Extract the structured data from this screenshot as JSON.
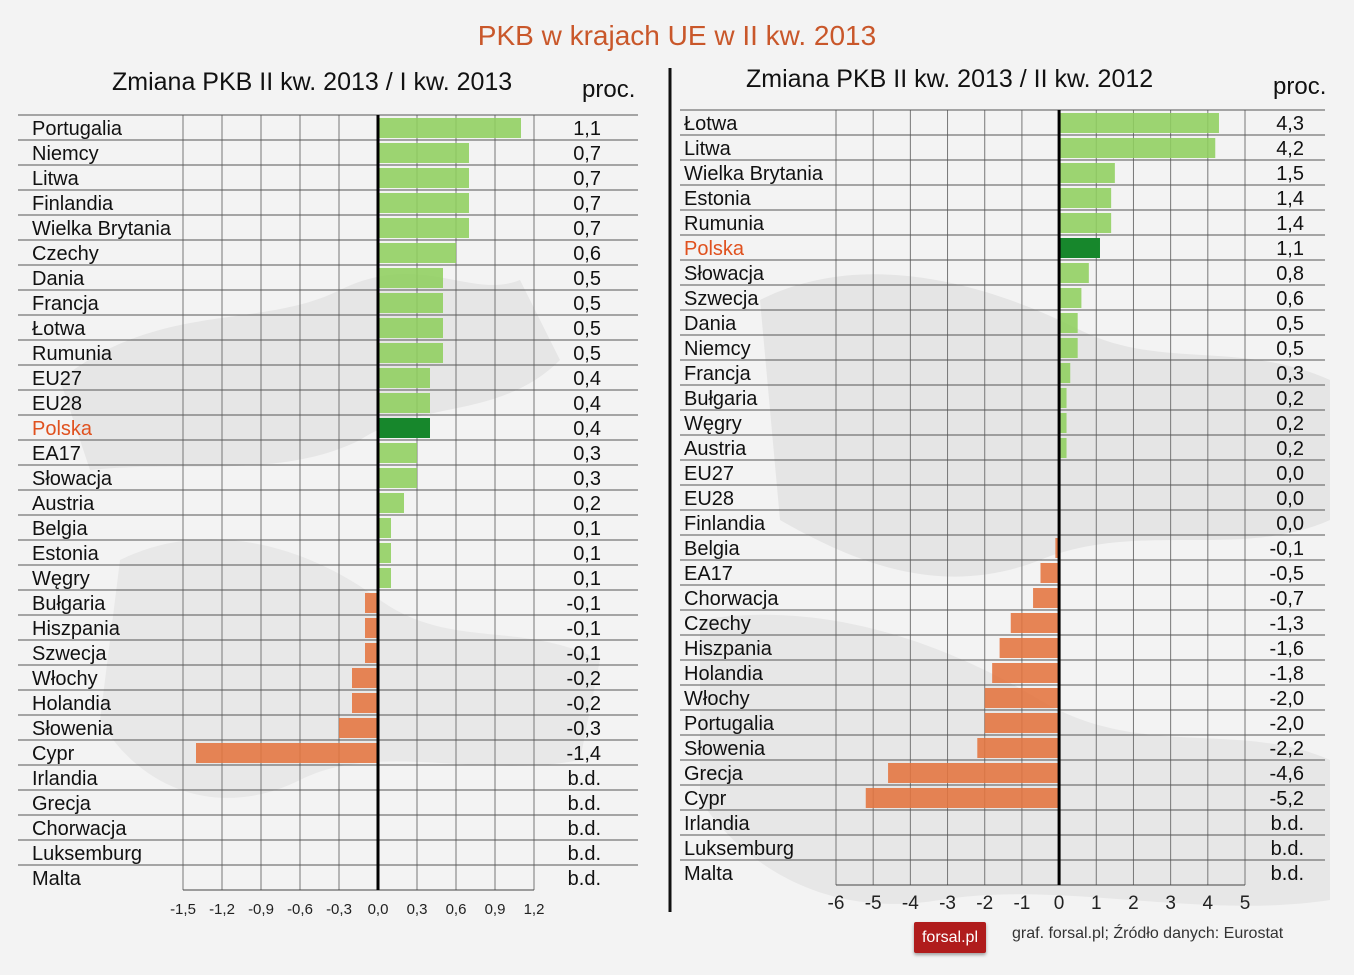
{
  "title": "PKB w krajach UE w II kw. 2013",
  "footer": {
    "logo_text": "forsal.pl",
    "source": "graf. forsal.pl; Źródło danych: Eurostat"
  },
  "colors": {
    "positive": "#8fcf5e",
    "negative": "#e4743f",
    "highlight_bar": "#17872c",
    "highlight_text": "#e0511e"
  },
  "chart_data": [
    {
      "type": "bar",
      "orientation": "horizontal",
      "title": "Zmiana PKB II kw. 2013 / I kw. 2013",
      "unit_label": "proc.",
      "xlim": [
        -1.5,
        1.2
      ],
      "xticks": [
        "-1,5",
        "-1,2",
        "-0,9",
        "-0,6",
        "-0,3",
        "0,0",
        "0,3",
        "0,6",
        "0,9",
        "1,2"
      ],
      "highlight": "Polska",
      "categories": [
        "Portugalia",
        "Niemcy",
        "Litwa",
        "Finlandia",
        "Wielka Brytania",
        "Czechy",
        "Dania",
        "Francja",
        "Łotwa",
        "Rumunia",
        "EU27",
        "EU28",
        "Polska",
        "EA17",
        "Słowacja",
        "Austria",
        "Belgia",
        "Estonia",
        "Węgry",
        "Bułgaria",
        "Hiszpania",
        "Szwecja",
        "Włochy",
        "Holandia",
        "Słowenia",
        "Cypr",
        "Irlandia",
        "Grecja",
        "Chorwacja",
        "Luksemburg",
        "Malta"
      ],
      "values": [
        1.1,
        0.7,
        0.7,
        0.7,
        0.7,
        0.6,
        0.5,
        0.5,
        0.5,
        0.5,
        0.4,
        0.4,
        0.4,
        0.3,
        0.3,
        0.2,
        0.1,
        0.1,
        0.1,
        -0.1,
        -0.1,
        -0.1,
        -0.2,
        -0.2,
        -0.3,
        -1.4,
        null,
        null,
        null,
        null,
        null
      ],
      "value_labels": [
        "1,1",
        "0,7",
        "0,7",
        "0,7",
        "0,7",
        "0,6",
        "0,5",
        "0,5",
        "0,5",
        "0,5",
        "0,4",
        "0,4",
        "0,4",
        "0,3",
        "0,3",
        "0,2",
        "0,1",
        "0,1",
        "0,1",
        "-0,1",
        "-0,1",
        "-0,1",
        "-0,2",
        "-0,2",
        "-0,3",
        "-1,4",
        "b.d.",
        "b.d.",
        "b.d.",
        "b.d.",
        "b.d."
      ]
    },
    {
      "type": "bar",
      "orientation": "horizontal",
      "title": "Zmiana PKB II kw. 2013 / II kw. 2012",
      "unit_label": "proc.",
      "xlim": [
        -6,
        5
      ],
      "xticks": [
        "-6",
        "-5",
        "-4",
        "-3",
        "-2",
        "-1",
        "0",
        "1",
        "2",
        "3",
        "4",
        "5"
      ],
      "highlight": "Polska",
      "categories": [
        "Łotwa",
        "Litwa",
        "Wielka Brytania",
        "Estonia",
        "Rumunia",
        "Polska",
        "Słowacja",
        "Szwecja",
        "Dania",
        "Niemcy",
        "Francja",
        "Bułgaria",
        "Węgry",
        "Austria",
        "EU27",
        "EU28",
        "Finlandia",
        "Belgia",
        "EA17",
        "Chorwacja",
        "Czechy",
        "Hiszpania",
        "Holandia",
        "Włochy",
        "Portugalia",
        "Słowenia",
        "Grecja",
        "Cypr",
        "Irlandia",
        "Luksemburg",
        "Malta"
      ],
      "values": [
        4.3,
        4.2,
        1.5,
        1.4,
        1.4,
        1.1,
        0.8,
        0.6,
        0.5,
        0.5,
        0.3,
        0.2,
        0.2,
        0.2,
        0.0,
        0.0,
        0.0,
        -0.1,
        -0.5,
        -0.7,
        -1.3,
        -1.6,
        -1.8,
        -2.0,
        -2.0,
        -2.2,
        -4.6,
        -5.2,
        null,
        null,
        null
      ],
      "value_labels": [
        "4,3",
        "4,2",
        "1,5",
        "1,4",
        "1,4",
        "1,1",
        "0,8",
        "0,6",
        "0,5",
        "0,5",
        "0,3",
        "0,2",
        "0,2",
        "0,2",
        "0,0",
        "0,0",
        "0,0",
        "-0,1",
        "-0,5",
        "-0,7",
        "-1,3",
        "-1,6",
        "-1,8",
        "-2,0",
        "-2,0",
        "-2,2",
        "-4,6",
        "-5,2",
        "b.d.",
        "b.d.",
        "b.d."
      ]
    }
  ]
}
